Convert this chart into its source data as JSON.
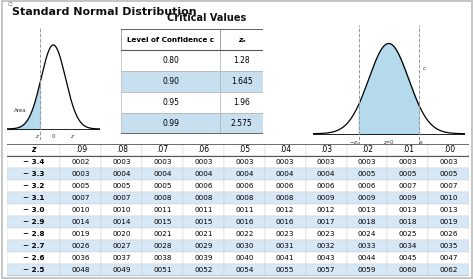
{
  "title": "Standard Normal Distribution",
  "critical_values_title": "Critical Values",
  "cv_headers": [
    "Level of Confidence c",
    "zₙ"
  ],
  "cv_data": [
    [
      "0.80",
      "1.28"
    ],
    [
      "0.90",
      "1.645"
    ],
    [
      "0.95",
      "1.96"
    ],
    [
      "0.99",
      "2.575"
    ]
  ],
  "cv_highlighted_rows": [
    1,
    3
  ],
  "table_col_headers": [
    "z",
    ".09",
    ".08",
    ".07",
    ".06",
    ".05",
    ".04",
    ".03",
    ".02",
    ".01",
    ".00"
  ],
  "table_rows": [
    [
      "− 3.4",
      "0002",
      "0003",
      "0003",
      "0003",
      "0003",
      "0003",
      "0003",
      "0003",
      "0003",
      "0003"
    ],
    [
      "− 3.3",
      "0003",
      "0004",
      "0004",
      "0004",
      "0004",
      "0004",
      "0004",
      "0005",
      "0005",
      "0005"
    ],
    [
      "− 3.2",
      "0005",
      "0005",
      "0005",
      "0006",
      "0006",
      "0006",
      "0006",
      "0006",
      "0007",
      "0007"
    ],
    [
      "− 3.1",
      "0007",
      "0007",
      "0008",
      "0008",
      "0008",
      "0008",
      "0009",
      "0009",
      "0009",
      "0010"
    ],
    [
      "− 3.0",
      "0010",
      "0010",
      "0011",
      "0011",
      "0011",
      "0012",
      "0012",
      "0013",
      "0013",
      "0013"
    ],
    [
      "− 2.9",
      "0014",
      "0014",
      "0015",
      "0015",
      "0016",
      "0016",
      "0017",
      "0018",
      "0018",
      "0019"
    ],
    [
      "− 2.8",
      "0019",
      "0020",
      "0021",
      "0021",
      "0022",
      "0023",
      "0023",
      "0024",
      "0025",
      "0026"
    ],
    [
      "− 2.7",
      "0026",
      "0027",
      "0028",
      "0029",
      "0030",
      "0031",
      "0032",
      "0033",
      "0034",
      "0035"
    ],
    [
      "− 2.6",
      "0036",
      "0037",
      "0038",
      "0039",
      "0040",
      "0041",
      "0043",
      "0044",
      "0045",
      "0047"
    ],
    [
      "− 2.5",
      "0048",
      "0049",
      "0051",
      "0052",
      "0054",
      "0055",
      "0057",
      "0059",
      "0060",
      "0062"
    ]
  ],
  "highlighted_table_rows": [
    1,
    3,
    5,
    7,
    9
  ],
  "highlight_color": "#d6e8f5",
  "background_color": "#f5f5f5",
  "cv_highlight_color": "#c8dff0"
}
